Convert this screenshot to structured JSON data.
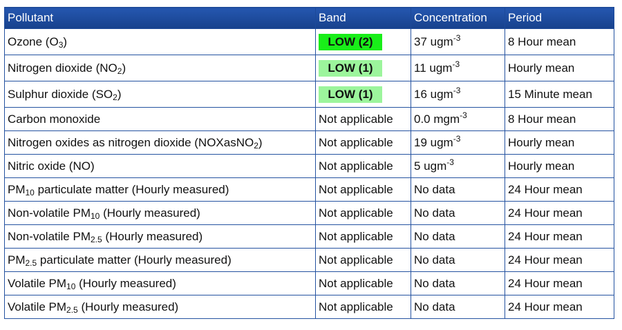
{
  "headers": {
    "pollutant": "Pollutant",
    "band": "Band",
    "concentration": "Concentration",
    "period": "Period"
  },
  "rows": [
    {
      "pollutant": {
        "pre": "Ozone (O",
        "sub": "3",
        "post": ")"
      },
      "band": {
        "text": "LOW (2)",
        "color": "#19ee19"
      },
      "conc": {
        "value": "37 ugm",
        "exp": "-3"
      },
      "period": "8 Hour mean"
    },
    {
      "pollutant": {
        "pre": "Nitrogen dioxide (NO",
        "sub": "2",
        "post": ")"
      },
      "band": {
        "text": "LOW (1)",
        "color": "#9cf59c"
      },
      "conc": {
        "value": "11 ugm",
        "exp": "-3"
      },
      "period": "Hourly mean"
    },
    {
      "pollutant": {
        "pre": "Sulphur dioxide (SO",
        "sub": "2",
        "post": ")"
      },
      "band": {
        "text": "LOW (1)",
        "color": "#9cf59c"
      },
      "conc": {
        "value": "16 ugm",
        "exp": "-3"
      },
      "period": "15 Minute mean"
    },
    {
      "pollutant": {
        "pre": "Carbon monoxide",
        "sub": "",
        "post": ""
      },
      "band": {
        "text": "Not applicable",
        "color": ""
      },
      "conc": {
        "value": "0.0 mgm",
        "exp": "-3"
      },
      "period": "8 Hour mean"
    },
    {
      "pollutant": {
        "pre": "Nitrogen oxides as nitrogen dioxide (NOXasNO",
        "sub": "2",
        "post": ")"
      },
      "band": {
        "text": "Not applicable",
        "color": ""
      },
      "conc": {
        "value": "19 ugm",
        "exp": "-3"
      },
      "period": "Hourly mean"
    },
    {
      "pollutant": {
        "pre": "Nitric oxide (NO)",
        "sub": "",
        "post": ""
      },
      "band": {
        "text": "Not applicable",
        "color": ""
      },
      "conc": {
        "value": "5 ugm",
        "exp": "-3"
      },
      "period": "Hourly mean"
    },
    {
      "pollutant": {
        "pre": "PM",
        "sub": "10",
        "post": " particulate matter (Hourly measured)"
      },
      "band": {
        "text": "Not applicable",
        "color": ""
      },
      "conc": {
        "value": "No data",
        "exp": ""
      },
      "period": "24 Hour mean"
    },
    {
      "pollutant": {
        "pre": "Non-volatile PM",
        "sub": "10",
        "post": " (Hourly measured)"
      },
      "band": {
        "text": "Not applicable",
        "color": ""
      },
      "conc": {
        "value": "No data",
        "exp": ""
      },
      "period": "24 Hour mean"
    },
    {
      "pollutant": {
        "pre": "Non-volatile PM",
        "sub": "2.5",
        "post": " (Hourly measured)"
      },
      "band": {
        "text": "Not applicable",
        "color": ""
      },
      "conc": {
        "value": "No data",
        "exp": ""
      },
      "period": "24 Hour mean"
    },
    {
      "pollutant": {
        "pre": "PM",
        "sub": "2.5",
        "post": " particulate matter (Hourly measured)"
      },
      "band": {
        "text": "Not applicable",
        "color": ""
      },
      "conc": {
        "value": "No data",
        "exp": ""
      },
      "period": "24 Hour mean"
    },
    {
      "pollutant": {
        "pre": "Volatile PM",
        "sub": "10",
        "post": " (Hourly measured)"
      },
      "band": {
        "text": "Not applicable",
        "color": ""
      },
      "conc": {
        "value": "No data",
        "exp": ""
      },
      "period": "24 Hour mean"
    },
    {
      "pollutant": {
        "pre": "Volatile PM",
        "sub": "2.5",
        "post": " (Hourly measured)"
      },
      "band": {
        "text": "Not applicable",
        "color": ""
      },
      "conc": {
        "value": "No data",
        "exp": ""
      },
      "period": "24 Hour mean"
    }
  ]
}
